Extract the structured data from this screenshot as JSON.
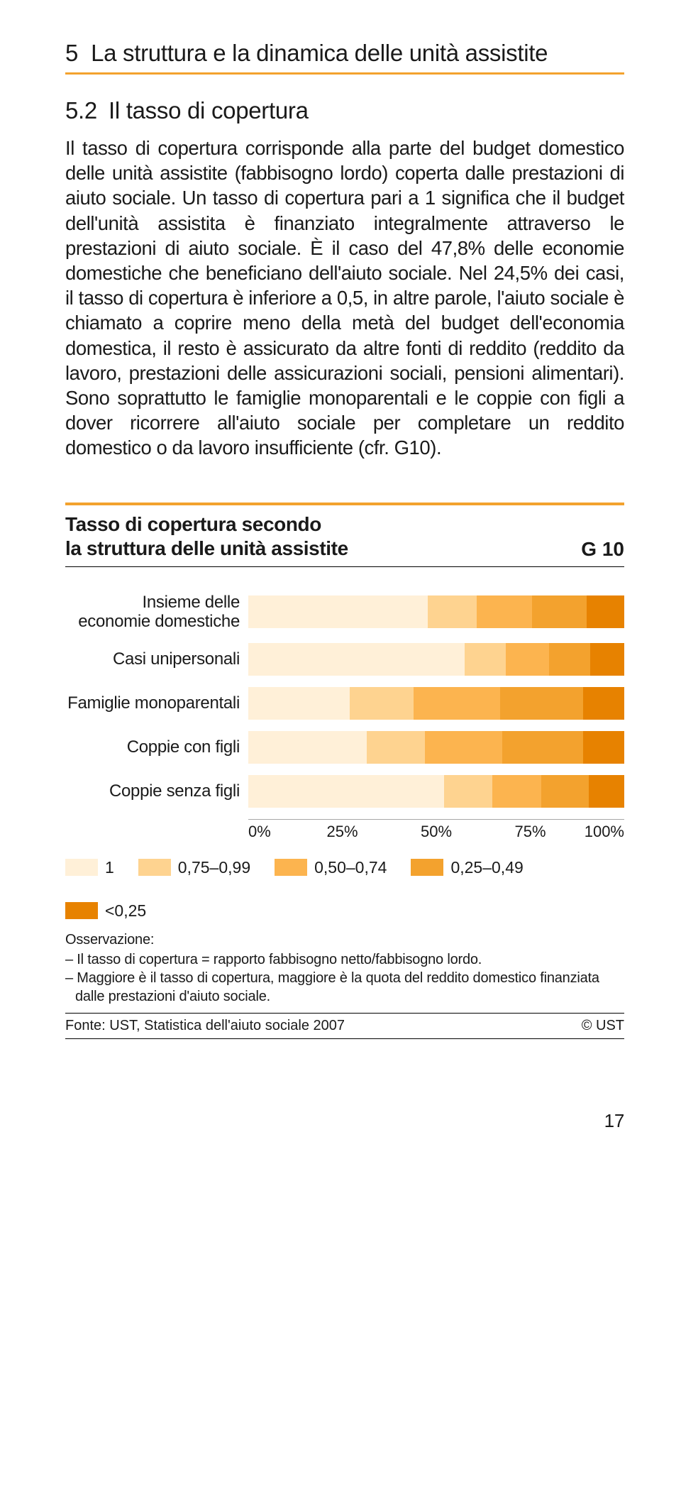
{
  "section": {
    "number": "5",
    "title": "La struttura e la dinamica delle unità assistite"
  },
  "subsection": {
    "number": "5.2",
    "title": "Il tasso di copertura"
  },
  "body": "Il tasso di copertura corrisponde alla parte del budget domestico delle unità assistite (fabbisogno lordo) coperta dalle prestazioni di aiuto sociale. Un tasso di copertura pari a 1 significa che il budget dell'unità assistita è finanziato integralmente attraverso le prestazioni di aiuto sociale. È il caso del 47,8% delle economie domestiche che beneficiano dell'aiuto sociale. Nel 24,5% dei casi, il tasso di copertura è inferiore a 0,5, in altre parole, l'aiuto sociale è chiamato a coprire meno della metà del budget dell'economia domestica, il resto è assicurato da altre fonti di reddito (reddito da lavoro, prestazioni delle assicurazioni sociali, pensioni alimentari). Sono soprattutto le famiglie monoparentali e le coppie con figli a dover ricorrere all'aiuto sociale per completare un reddito domestico o da lavoro insufficiente (cfr. G10).",
  "chart": {
    "title_line1": "Tasso di copertura secondo",
    "title_line2": "la struttura delle unità assistite",
    "code": "G 10",
    "colors": {
      "c1": "#fff0d8",
      "c2": "#fed390",
      "c3": "#fcb44f",
      "c4": "#f3a22e",
      "c5": "#e78200"
    },
    "rows": [
      {
        "label_line1": "Insieme delle",
        "label_line2": "economie domestiche",
        "segments": [
          47.8,
          13.0,
          14.7,
          14.5,
          10.0
        ]
      },
      {
        "label_line1": "Casi unipersonali",
        "label_line2": "",
        "segments": [
          57.5,
          11.0,
          11.5,
          11.0,
          9.0
        ]
      },
      {
        "label_line1": "Famiglie monoparentali",
        "label_line2": "",
        "segments": [
          27.0,
          17.0,
          23.0,
          22.0,
          11.0
        ]
      },
      {
        "label_line1": "Coppie con figli",
        "label_line2": "",
        "segments": [
          31.5,
          15.5,
          20.5,
          21.5,
          11.0
        ]
      },
      {
        "label_line1": "Coppie senza figli",
        "label_line2": "",
        "segments": [
          52.0,
          13.0,
          13.0,
          12.5,
          9.5
        ]
      }
    ],
    "axis": [
      "0%",
      "25%",
      "50%",
      "75%",
      "100%"
    ],
    "legend": [
      {
        "swatch": "c1",
        "label": "1"
      },
      {
        "swatch": "c2",
        "label": "0,75–0,99"
      },
      {
        "swatch": "c3",
        "label": "0,50–0,74"
      },
      {
        "swatch": "c4",
        "label": "0,25–0,49"
      },
      {
        "swatch": "c5",
        "label": "<0,25"
      }
    ],
    "observation_head": "Osservazione:",
    "observation_lines": [
      "– Il tasso di copertura = rapporto fabbisogno netto/fabbisogno lordo.",
      "– Maggiore è il tasso di copertura, maggiore è la quota del reddito domestico finanziata dalle prestazioni d'aiuto sociale."
    ],
    "source": "Fonte: UST, Statistica dell'aiuto sociale 2007",
    "copyright": "© UST"
  },
  "page": "17"
}
